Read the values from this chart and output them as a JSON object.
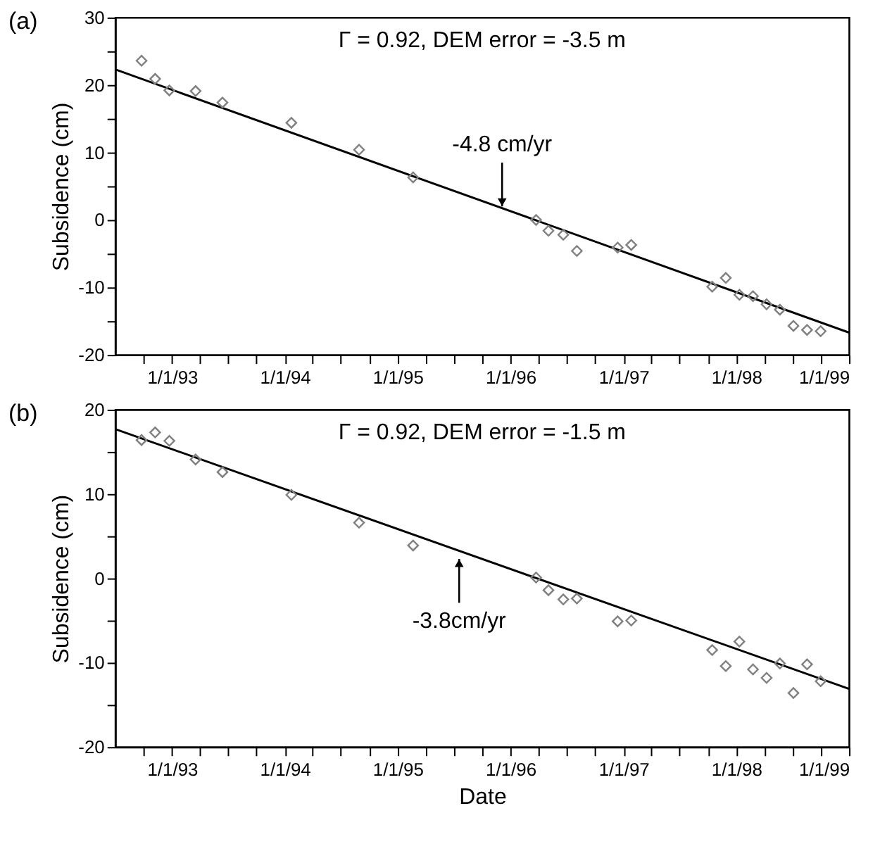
{
  "chart_data": [
    {
      "type": "scatter",
      "title": "(a)",
      "ylabel": "Subsidence (cm)",
      "annotations": [
        "Γ = 0.92, DEM error = -3.5 m",
        {
          "text": "-4.8 cm/yr",
          "x": "1995-12-05",
          "y": 2.0
        }
      ],
      "xlim": [
        "1992-07-01",
        "1999-01-01"
      ],
      "xticks": [
        {
          "value": "1992-10-01",
          "label": null
        },
        {
          "value": "1993-01-01",
          "label": "1/1/93"
        },
        {
          "value": "1993-04-01",
          "label": null
        },
        {
          "value": "1993-07-01",
          "label": null
        },
        {
          "value": "1993-10-01",
          "label": null
        },
        {
          "value": "1994-01-01",
          "label": "1/1/94"
        },
        {
          "value": "1994-04-01",
          "label": null
        },
        {
          "value": "1994-07-01",
          "label": null
        },
        {
          "value": "1994-10-01",
          "label": null
        },
        {
          "value": "1995-01-01",
          "label": "1/1/95"
        },
        {
          "value": "1995-04-01",
          "label": null
        },
        {
          "value": "1995-07-01",
          "label": null
        },
        {
          "value": "1995-10-01",
          "label": null
        },
        {
          "value": "1996-01-01",
          "label": "1/1/96"
        },
        {
          "value": "1996-04-01",
          "label": null
        },
        {
          "value": "1996-07-01",
          "label": null
        },
        {
          "value": "1996-10-01",
          "label": null
        },
        {
          "value": "1997-01-01",
          "label": "1/1/97"
        },
        {
          "value": "1997-04-01",
          "label": null
        },
        {
          "value": "1997-07-01",
          "label": null
        },
        {
          "value": "1997-10-01",
          "label": null
        },
        {
          "value": "1998-01-01",
          "label": "1/1/98"
        },
        {
          "value": "1998-04-01",
          "label": null
        },
        {
          "value": "1998-07-01",
          "label": null
        },
        {
          "value": "1998-10-01",
          "label": null
        },
        {
          "value": "1999-01-01",
          "label": "1/1/99"
        }
      ],
      "ylim": [
        -20,
        30
      ],
      "yticks": [
        -20,
        {
          "value": -15,
          "label": null
        },
        -10,
        {
          "value": -5,
          "label": null
        },
        0,
        {
          "value": 5,
          "label": null
        },
        10,
        {
          "value": 15,
          "label": null
        },
        20,
        {
          "value": 25,
          "label": null
        },
        30
      ],
      "series": [
        {
          "marker": "diamond",
          "color": "#808080",
          "x": [
            "1992-09-24",
            "1992-11-07",
            "1992-12-23",
            "1993-03-18",
            "1993-06-13",
            "1994-01-22",
            "1994-08-29",
            "1995-02-20",
            "1996-03-24",
            "1996-05-03",
            "1996-06-20",
            "1996-08-03",
            "1996-12-13",
            "1997-01-26",
            "1997-10-15",
            "1997-11-28",
            "1998-01-11",
            "1998-02-24",
            "1998-04-09",
            "1998-05-22",
            "1998-07-05",
            "1998-08-18",
            "1998-10-01"
          ],
          "values": [
            23.6,
            20.9,
            19.2,
            19.1,
            17.4,
            14.4,
            10.4,
            6.3,
            0.0,
            -1.6,
            -2.2,
            -4.6,
            -4.1,
            -3.7,
            -9.9,
            -8.6,
            -11.1,
            -11.3,
            -12.5,
            -13.3,
            -15.7,
            -16.3,
            -16.5
          ]
        },
        {
          "type": "line",
          "marker": "none",
          "line_style": "solid",
          "color": "#000000",
          "x": [
            "1992-07-01",
            "1999-01-01"
          ],
          "values": [
            22.3,
            -16.7
          ]
        }
      ]
    },
    {
      "type": "scatter",
      "title": "(b)",
      "xlabel": "Date",
      "ylabel": "Subsidence (cm)",
      "annotations": [
        "Γ = 0.92, DEM error = -1.5 m",
        {
          "text": "-3.8cm/yr",
          "x": "1995-07-19",
          "y": 2.3
        }
      ],
      "xlim": [
        "1992-07-01",
        "1999-01-01"
      ],
      "xticks": [
        {
          "value": "1992-10-01",
          "label": null
        },
        {
          "value": "1993-01-01",
          "label": "1/1/93"
        },
        {
          "value": "1993-04-01",
          "label": null
        },
        {
          "value": "1993-07-01",
          "label": null
        },
        {
          "value": "1993-10-01",
          "label": null
        },
        {
          "value": "1994-01-01",
          "label": "1/1/94"
        },
        {
          "value": "1994-04-01",
          "label": null
        },
        {
          "value": "1994-07-01",
          "label": null
        },
        {
          "value": "1994-10-01",
          "label": null
        },
        {
          "value": "1995-01-01",
          "label": "1/1/95"
        },
        {
          "value": "1995-04-01",
          "label": null
        },
        {
          "value": "1995-07-01",
          "label": null
        },
        {
          "value": "1995-10-01",
          "label": null
        },
        {
          "value": "1996-01-01",
          "label": "1/1/96"
        },
        {
          "value": "1996-04-01",
          "label": null
        },
        {
          "value": "1996-07-01",
          "label": null
        },
        {
          "value": "1996-10-01",
          "label": null
        },
        {
          "value": "1997-01-01",
          "label": "1/1/97"
        },
        {
          "value": "1997-04-01",
          "label": null
        },
        {
          "value": "1997-07-01",
          "label": null
        },
        {
          "value": "1997-10-01",
          "label": null
        },
        {
          "value": "1998-01-01",
          "label": "1/1/98"
        },
        {
          "value": "1998-04-01",
          "label": null
        },
        {
          "value": "1998-07-01",
          "label": null
        },
        {
          "value": "1998-10-01",
          "label": null
        },
        {
          "value": "1999-01-01",
          "label": "1/1/99"
        }
      ],
      "ylim": [
        -20,
        20
      ],
      "yticks": [
        -20,
        {
          "value": -15,
          "label": null
        },
        -10,
        {
          "value": -5,
          "label": null
        },
        0,
        {
          "value": 5,
          "label": null
        },
        10,
        {
          "value": 15,
          "label": null
        },
        20
      ],
      "series": [
        {
          "marker": "diamond",
          "color": "#808080",
          "x": [
            "1992-09-24",
            "1992-11-07",
            "1992-12-23",
            "1993-03-18",
            "1993-06-13",
            "1994-01-22",
            "1994-08-29",
            "1995-02-20",
            "1996-03-24",
            "1996-05-03",
            "1996-06-20",
            "1996-08-03",
            "1996-12-13",
            "1997-01-26",
            "1997-10-15",
            "1997-11-28",
            "1998-01-11",
            "1998-02-24",
            "1998-04-09",
            "1998-05-22",
            "1998-07-05",
            "1998-08-18",
            "1998-10-01"
          ],
          "values": [
            16.4,
            17.3,
            16.3,
            14.1,
            12.6,
            9.9,
            6.6,
            3.9,
            0.1,
            -1.4,
            -2.5,
            -2.4,
            -5.1,
            -5.0,
            -8.5,
            -10.4,
            -7.5,
            -10.8,
            -11.8,
            -10.1,
            -13.6,
            -10.2,
            -12.2
          ]
        },
        {
          "type": "line",
          "marker": "none",
          "line_style": "solid",
          "color": "#000000",
          "x": [
            "1992-07-01",
            "1999-01-01"
          ],
          "values": [
            17.7,
            -13.1
          ]
        }
      ]
    }
  ]
}
